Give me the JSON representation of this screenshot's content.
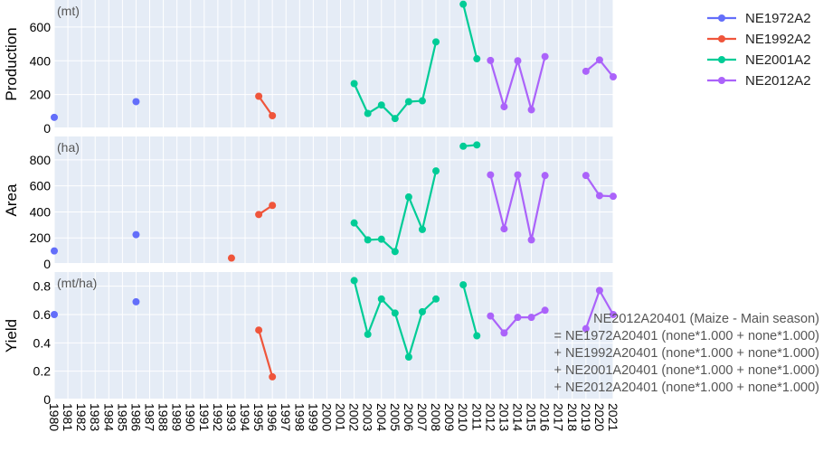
{
  "chart_data": {
    "type": "line",
    "x": [
      1980,
      1981,
      1982,
      1983,
      1984,
      1985,
      1986,
      1987,
      1988,
      1989,
      1990,
      1991,
      1992,
      1993,
      1994,
      1995,
      1996,
      1997,
      1998,
      1999,
      2000,
      2001,
      2002,
      2003,
      2004,
      2005,
      2006,
      2007,
      2008,
      2009,
      2010,
      2011,
      2012,
      2013,
      2014,
      2015,
      2016,
      2017,
      2018,
      2019,
      2020,
      2021
    ],
    "x_tick_labels": [
      "1980",
      "1981",
      "1982",
      "1983",
      "1984",
      "1985",
      "1986",
      "1987",
      "1988",
      "1989",
      "1990",
      "1991",
      "1992",
      "1993",
      "1994",
      "1995",
      "1996",
      "1997",
      "1998",
      "1999",
      "2000",
      "2001",
      "2002",
      "2003",
      "2004",
      "2005",
      "2006",
      "2007",
      "2008",
      "2009",
      "2010",
      "2011",
      "2012",
      "2013",
      "2014",
      "2015",
      "2016",
      "2017",
      "2018",
      "2019",
      "2020",
      "2021"
    ],
    "grid": true,
    "legend_position": "top-right",
    "legend": [
      {
        "name": "NE1972A2",
        "color": "#636efa"
      },
      {
        "name": "NE1992A2",
        "color": "#ef553b"
      },
      {
        "name": "NE2001A2",
        "color": "#00cc96"
      },
      {
        "name": "NE2012A2",
        "color": "#ab63fa"
      }
    ],
    "panels": [
      {
        "key": "production",
        "ylabel": "Production",
        "unit": "(mt)",
        "ylim": [
          0,
          760
        ],
        "yticks": [
          0,
          200,
          400,
          600
        ],
        "series": [
          {
            "name": "NE1972A2",
            "color": "#636efa",
            "points": [
              [
                1980,
                65,
                "m"
              ],
              [
                1986,
                158,
                "m"
              ]
            ]
          },
          {
            "name": "NE1992A2",
            "color": "#ef553b",
            "points": [
              [
                1995,
                190
              ],
              [
                1996,
                75
              ]
            ]
          },
          {
            "name": "NE2001A2",
            "color": "#00cc96",
            "points": [
              [
                2002,
                265
              ],
              [
                2003,
                88
              ],
              [
                2004,
                138
              ],
              [
                2005,
                58
              ],
              [
                2006,
                158
              ],
              [
                2007,
                163
              ],
              [
                2008,
                512
              ],
              [
                2010,
                735
              ],
              [
                2011,
                412
              ]
            ]
          },
          {
            "name": "NE2012A2",
            "color": "#ab63fa",
            "points": [
              [
                2012,
                402
              ],
              [
                2013,
                128
              ],
              [
                2014,
                400
              ],
              [
                2015,
                110
              ],
              [
                2016,
                425
              ],
              [
                2019,
                338
              ],
              [
                2020,
                405
              ],
              [
                2021,
                305
              ]
            ]
          }
        ]
      },
      {
        "key": "area",
        "ylabel": "Area",
        "unit": "(ha)",
        "ylim": [
          0,
          980
        ],
        "yticks": [
          0,
          200,
          400,
          600,
          800
        ],
        "series": [
          {
            "name": "NE1972A2",
            "color": "#636efa",
            "points": [
              [
                1980,
                100,
                "m"
              ],
              [
                1986,
                225,
                "m"
              ]
            ]
          },
          {
            "name": "NE1992A2",
            "color": "#ef553b",
            "points": [
              [
                1993,
                45,
                "m"
              ],
              [
                1995,
                380
              ],
              [
                1996,
                450
              ]
            ]
          },
          {
            "name": "NE2001A2",
            "color": "#00cc96",
            "points": [
              [
                2002,
                315
              ],
              [
                2003,
                185
              ],
              [
                2004,
                190
              ],
              [
                2005,
                95
              ],
              [
                2006,
                515
              ],
              [
                2007,
                265
              ],
              [
                2008,
                715
              ],
              [
                2010,
                905
              ],
              [
                2011,
                915
              ]
            ]
          },
          {
            "name": "NE2012A2",
            "color": "#ab63fa",
            "points": [
              [
                2012,
                685
              ],
              [
                2013,
                270
              ],
              [
                2014,
                685
              ],
              [
                2015,
                185
              ],
              [
                2016,
                680
              ],
              [
                2019,
                680
              ],
              [
                2020,
                525
              ],
              [
                2021,
                520
              ]
            ]
          }
        ]
      },
      {
        "key": "yield",
        "ylabel": "Yield",
        "unit": "(mt/ha)",
        "ylim": [
          0,
          0.9
        ],
        "yticks": [
          0,
          0.2,
          0.4,
          0.6,
          0.8
        ],
        "ytick_labels": [
          "0",
          "0.2",
          "0.4",
          "0.6",
          "0.8"
        ],
        "series": [
          {
            "name": "NE1972A2",
            "color": "#636efa",
            "points": [
              [
                1980,
                0.6,
                "m"
              ],
              [
                1986,
                0.69,
                "m"
              ]
            ]
          },
          {
            "name": "NE1992A2",
            "color": "#ef553b",
            "points": [
              [
                1995,
                0.49
              ],
              [
                1996,
                0.16
              ]
            ]
          },
          {
            "name": "NE2001A2",
            "color": "#00cc96",
            "points": [
              [
                2002,
                0.84
              ],
              [
                2003,
                0.46
              ],
              [
                2004,
                0.71
              ],
              [
                2005,
                0.61
              ],
              [
                2006,
                0.3
              ],
              [
                2007,
                0.62
              ],
              [
                2008,
                0.71
              ],
              [
                2010,
                0.81
              ],
              [
                2011,
                0.45
              ]
            ]
          },
          {
            "name": "NE2012A2",
            "color": "#ab63fa",
            "points": [
              [
                2012,
                0.59
              ],
              [
                2013,
                0.47
              ],
              [
                2014,
                0.58
              ],
              [
                2015,
                0.58
              ],
              [
                2016,
                0.63
              ],
              [
                2019,
                0.5
              ],
              [
                2020,
                0.77
              ],
              [
                2021,
                0.6
              ]
            ]
          }
        ]
      }
    ],
    "annotation_lines": [
      "NE2012A20401 (Maize - Main season)",
      "= NE1972A20401 (none*1.000 + none*1.000)",
      "+ NE1992A20401 (none*1.000 + none*1.000)",
      "+ NE2001A20401 (none*1.000 + none*1.000)",
      "+ NE2012A20401 (none*1.000 + none*1.000)"
    ]
  }
}
